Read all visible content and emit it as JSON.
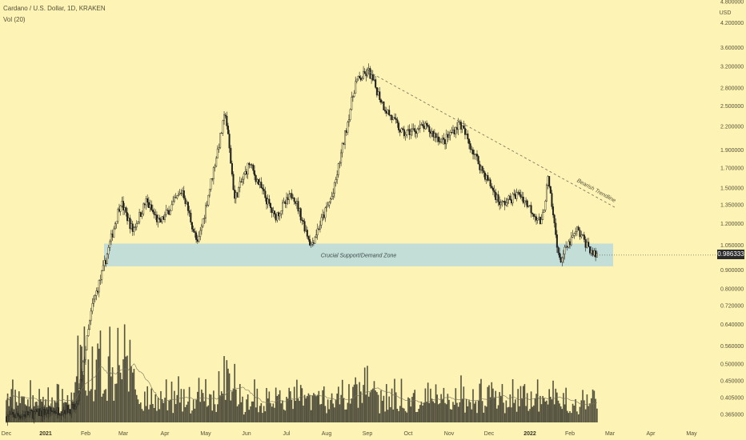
{
  "header": {
    "symbol": "Cardano / U.S. Dollar, 1D, KRAKEN",
    "volume_label": "Vol (20)"
  },
  "price_axis": {
    "unit": "USD",
    "labels": [
      "4.800000",
      "4.200000",
      "3.600000",
      "3.200000",
      "2.800000",
      "2.500000",
      "2.200000",
      "1.900000",
      "1.700000",
      "1.500000",
      "1.350000",
      "1.200000",
      "1.050000",
      "0.900000",
      "0.800000",
      "0.720000",
      "0.640000",
      "0.560000",
      "0.500000",
      "0.450000",
      "0.405000",
      "0.365000"
    ],
    "last_price": "0.986333"
  },
  "time_axis": {
    "labels": [
      {
        "text": "Dec",
        "bold": false
      },
      {
        "text": "2021",
        "bold": true
      },
      {
        "text": "Feb",
        "bold": false
      },
      {
        "text": "Mar",
        "bold": false
      },
      {
        "text": "Apr",
        "bold": false
      },
      {
        "text": "May",
        "bold": false
      },
      {
        "text": "Jun",
        "bold": false
      },
      {
        "text": "Jul",
        "bold": false
      },
      {
        "text": "Aug",
        "bold": false
      },
      {
        "text": "Sep",
        "bold": false
      },
      {
        "text": "Oct",
        "bold": false
      },
      {
        "text": "Nov",
        "bold": false
      },
      {
        "text": "Dec",
        "bold": false
      },
      {
        "text": "2022",
        "bold": true
      },
      {
        "text": "Feb",
        "bold": false
      },
      {
        "text": "Mar",
        "bold": false
      },
      {
        "text": "Apr",
        "bold": false
      },
      {
        "text": "May",
        "bold": false
      }
    ]
  },
  "annotations": {
    "zone_label": "Crucial Support/Demand Zone",
    "trendline_label": "Bearish Trendline"
  },
  "colors": {
    "background": "#fdf3b4",
    "candle": "#1f1f1f",
    "zone_fill": "#b9d9dc",
    "volume_bar": "#2b2b22",
    "text": "#55503a"
  },
  "chart_data": {
    "type": "candlestick",
    "title": "Cardano / U.S. Dollar, 1D, KRAKEN",
    "ylabel": "USD",
    "y_scale": "log",
    "ylim": [
      0.34,
      4.8
    ],
    "x_range": [
      "Dec 2020",
      "May 2022"
    ],
    "support_zone": {
      "label": "Crucial Support/Demand Zone",
      "low": 0.92,
      "high": 1.06,
      "from": "Feb 2021",
      "to": "Feb 2022"
    },
    "trendline": {
      "label": "Bearish Trendline",
      "from": {
        "date": "Sep 2021",
        "price": 3.1
      },
      "to": {
        "date": "Feb 2022",
        "price": 1.33
      }
    },
    "last_price": 0.986333,
    "series": [
      {
        "name": "price",
        "points": [
          {
            "date": "2020-12-01",
            "close": 0.36
          },
          {
            "date": "2021-01-01",
            "close": 0.37
          },
          {
            "date": "2021-01-25",
            "close": 0.38
          },
          {
            "date": "2021-02-06",
            "close": 0.72
          },
          {
            "date": "2021-02-14",
            "close": 0.9
          },
          {
            "date": "2021-02-27",
            "close": 1.38
          },
          {
            "date": "2021-03-08",
            "close": 1.15
          },
          {
            "date": "2021-03-18",
            "close": 1.38
          },
          {
            "date": "2021-03-28",
            "close": 1.2
          },
          {
            "date": "2021-04-14",
            "close": 1.48
          },
          {
            "date": "2021-04-25",
            "close": 1.05
          },
          {
            "date": "2021-05-10",
            "close": 1.9
          },
          {
            "date": "2021-05-16",
            "close": 2.4
          },
          {
            "date": "2021-05-23",
            "close": 1.4
          },
          {
            "date": "2021-06-03",
            "close": 1.75
          },
          {
            "date": "2021-06-22",
            "close": 1.25
          },
          {
            "date": "2021-07-06",
            "close": 1.45
          },
          {
            "date": "2021-07-20",
            "close": 1.05
          },
          {
            "date": "2021-08-06",
            "close": 1.45
          },
          {
            "date": "2021-08-23",
            "close": 2.9
          },
          {
            "date": "2021-09-02",
            "close": 3.1
          },
          {
            "date": "2021-09-13",
            "close": 2.5
          },
          {
            "date": "2021-09-27",
            "close": 2.1
          },
          {
            "date": "2021-10-13",
            "close": 2.2
          },
          {
            "date": "2021-10-28",
            "close": 2.0
          },
          {
            "date": "2021-11-09",
            "close": 2.25
          },
          {
            "date": "2021-11-25",
            "close": 1.7
          },
          {
            "date": "2021-12-10",
            "close": 1.35
          },
          {
            "date": "2021-12-24",
            "close": 1.45
          },
          {
            "date": "2022-01-10",
            "close": 1.2
          },
          {
            "date": "2022-01-15",
            "close": 1.58
          },
          {
            "date": "2022-01-24",
            "close": 0.95
          },
          {
            "date": "2022-02-06",
            "close": 1.15
          },
          {
            "date": "2022-02-18",
            "close": 0.986
          }
        ]
      }
    ]
  }
}
